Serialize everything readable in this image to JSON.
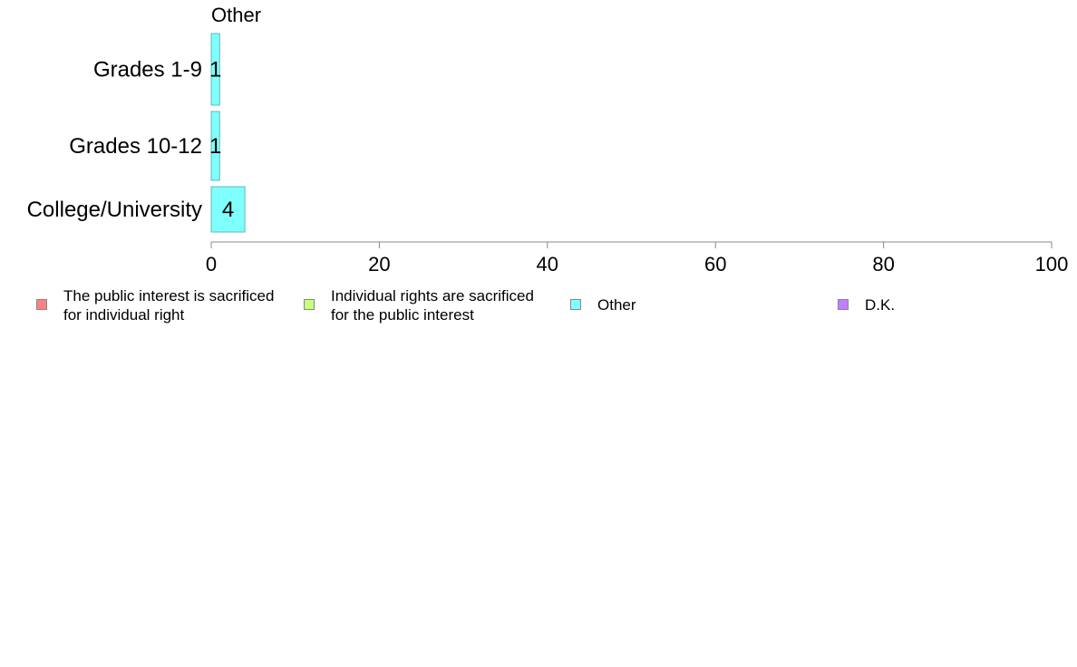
{
  "chart_data": {
    "type": "bar",
    "orientation": "horizontal",
    "panel_title": "Other",
    "categories": [
      "Grades 1-9",
      "Grades 10-12",
      "College/University"
    ],
    "series": [
      {
        "name": "Other",
        "values": [
          1,
          1,
          4
        ],
        "labels": [
          "1",
          "1",
          "4"
        ],
        "color": "#80FFFF"
      }
    ],
    "xlim": [
      0,
      100
    ],
    "xticks": [
      0,
      20,
      40,
      60,
      80,
      100
    ],
    "xtick_labels": [
      "0",
      "20",
      "40",
      "60",
      "80",
      "100"
    ],
    "grid": false
  },
  "legend": {
    "placement": "bottom",
    "items": [
      {
        "label": "The public interest is sacrificed\nfor individual right",
        "color": "#FF8080"
      },
      {
        "label": "Individual rights are sacrificed\nfor the public interest",
        "color": "#C8FF80"
      },
      {
        "label": "Other",
        "color": "#80FFFF"
      },
      {
        "label": "D.K.",
        "color": "#BF80FF"
      }
    ]
  }
}
